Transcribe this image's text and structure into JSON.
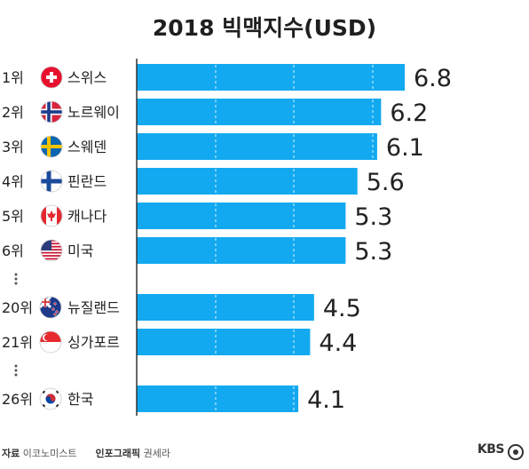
{
  "title": "2018 빅맥지수(USD)",
  "footer": {
    "source_label": "자료",
    "source_value": "이코노미스트",
    "graphic_label": "인포그래픽",
    "graphic_value": "권세라",
    "brand": "KBS"
  },
  "chart_data": {
    "type": "bar",
    "orientation": "horizontal",
    "title": "2018 빅맥지수(USD)",
    "categories": [
      "스위스",
      "노르웨이",
      "스웨덴",
      "핀란드",
      "캐나다",
      "미국",
      "뉴질랜드",
      "싱가포르",
      "한국"
    ],
    "ranks": [
      "1위",
      "2위",
      "3위",
      "4위",
      "5위",
      "6위",
      "20위",
      "21위",
      "26위"
    ],
    "flags": [
      "flag-switzerland",
      "flag-norway",
      "flag-sweden",
      "flag-finland",
      "flag-canada",
      "flag-usa",
      "flag-new-zealand",
      "flag-singapore",
      "flag-korea"
    ],
    "values": [
      6.8,
      6.2,
      6.1,
      5.6,
      5.3,
      5.3,
      4.5,
      4.4,
      4.1
    ],
    "value_labels": [
      "6.8",
      "6.2",
      "6.1",
      "5.6",
      "5.3",
      "5.3",
      "4.5",
      "4.4",
      "4.1"
    ],
    "gaps_after": [
      5,
      7
    ],
    "bar_color": "#12a9f0",
    "grid": true,
    "legend": "none"
  }
}
